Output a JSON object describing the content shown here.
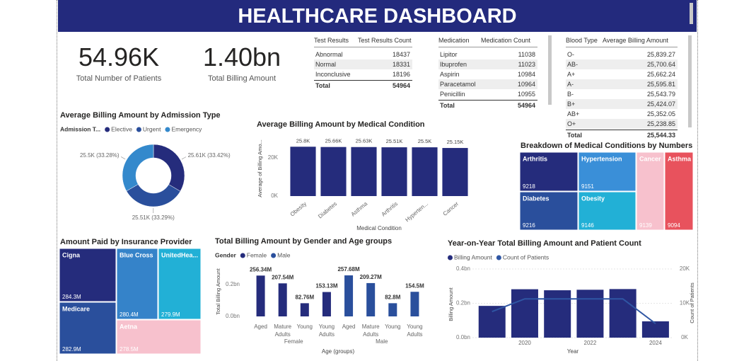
{
  "header": {
    "title": "HEALTHCARE DASHBOARD"
  },
  "kpis": [
    {
      "value": "54.96K",
      "label": "Total Number of Patients"
    },
    {
      "value": "1.40bn",
      "label": "Total Billing Amount"
    }
  ],
  "tables": [
    {
      "columns": [
        "Test Results",
        "Test Results Count"
      ],
      "rows": [
        [
          "Abnormal",
          "18437"
        ],
        [
          "Normal",
          "18331"
        ],
        [
          "Inconclusive",
          "18196"
        ]
      ],
      "total": [
        "Total",
        "54964"
      ]
    },
    {
      "columns": [
        "Medication",
        "Medication Count"
      ],
      "rows": [
        [
          "Lipitor",
          "11038"
        ],
        [
          "Ibuprofen",
          "11023"
        ],
        [
          "Aspirin",
          "10984"
        ],
        [
          "Paracetamol",
          "10964"
        ],
        [
          "Penicillin",
          "10955"
        ]
      ],
      "total": [
        "Total",
        "54964"
      ]
    },
    {
      "columns": [
        "Blood Type",
        "Average Billing Amount"
      ],
      "rows": [
        [
          "O-",
          "25,839.27"
        ],
        [
          "AB-",
          "25,700.64"
        ],
        [
          "A+",
          "25,662.24"
        ],
        [
          "A-",
          "25,595.81"
        ],
        [
          "B-",
          "25,543.79"
        ],
        [
          "B+",
          "25,424.07"
        ],
        [
          "AB+",
          "25,352.05"
        ],
        [
          "O+",
          "25,238.85"
        ]
      ],
      "total": [
        "Total",
        "25,544.33"
      ]
    }
  ],
  "chart_data": [
    {
      "type": "pie",
      "title": "Average Billing Amount by Admission Type",
      "legend_title": "Admission T...",
      "categories": [
        "Elective",
        "Urgent",
        "Emergency"
      ],
      "values": [
        25610,
        25510,
        25500
      ],
      "value_labels": [
        "25.61K (33.42%)",
        "25.51K (33.29%)",
        "25.5K (33.28%)"
      ],
      "colors": [
        "#252c7c",
        "#2a4f9c",
        "#3489cc"
      ]
    },
    {
      "type": "bar",
      "title": "Average Billing Amount by Medical Condition",
      "categories": [
        "Obesity",
        "Diabetes",
        "Asthma",
        "Arthritis",
        "Hyperten...",
        "Cancer"
      ],
      "values": [
        25800,
        25660,
        25630,
        25510,
        25500,
        25150
      ],
      "value_labels": [
        "25.8K",
        "25.66K",
        "25.63K",
        "25.51K",
        "25.5K",
        "25.15K"
      ],
      "color": "#252c7c",
      "ylim": [
        0,
        28500
      ],
      "yticks": [
        {
          "value": 0,
          "label": "0K"
        },
        {
          "value": 20000,
          "label": "20K"
        }
      ],
      "xlabel": "Medical Condition",
      "ylabel": "Average of Billing Amo...",
      "grid": false
    },
    {
      "type": "treemap",
      "title": "Breakdown of Medical Conditions by Numbers",
      "categories": [
        "Arthritis",
        "Diabetes",
        "Hypertension",
        "Obesity",
        "Cancer",
        "Asthma"
      ],
      "values": [
        9218,
        9216,
        9151,
        9146,
        9139,
        9094
      ],
      "colors": [
        "#252c7c",
        "#2a4f9c",
        "#3a8fd8",
        "#22b0d6",
        "#f7c1cd",
        "#e8525d"
      ]
    },
    {
      "type": "treemap",
      "title": "Amount Paid by Insurance Provider",
      "categories": [
        "Cigna",
        "Medicare",
        "Blue Cross",
        "UnitedHea...",
        "Aetna"
      ],
      "values": [
        284300000,
        282900000,
        280400000,
        279900000,
        278500000
      ],
      "value_labels": [
        "284.3M",
        "282.9M",
        "280.4M",
        "279.9M",
        "278.5M"
      ],
      "colors": [
        "#252c7c",
        "#2a4f9c",
        "#3583c9",
        "#22b0d6",
        "#f7c1cd"
      ]
    },
    {
      "type": "bar",
      "title": "Total Billing Amount by Gender and Age groups",
      "legend_title": "Gender",
      "categories": [
        "Aged",
        "Mature Adults",
        "Young",
        "Young Adults"
      ],
      "series": [
        {
          "name": "Female",
          "color": "#252c7c",
          "values": [
            256340000,
            207540000,
            82760000,
            153130000
          ],
          "value_labels": [
            "256.34M",
            "207.54M",
            "82.76M",
            "153.13M"
          ]
        },
        {
          "name": "Male",
          "color": "#2a4f9c",
          "values": [
            257680000,
            209270000,
            82800000,
            154500000
          ],
          "value_labels": [
            "257.68M",
            "209.27M",
            "82.8M",
            "154.5M"
          ]
        }
      ],
      "ylim": [
        0,
        320000000
      ],
      "yticks": [
        {
          "value": 0,
          "label": "0.0bn"
        },
        {
          "value": 200000000,
          "label": "0.2bn"
        }
      ],
      "xlabel": "Age (groups)",
      "ylabel": "Total Billing Amount",
      "grid": false
    },
    {
      "type": "combo",
      "title": "Year-on-Year Total Billing Amount and Patient Count",
      "x": [
        2019,
        2020,
        2021,
        2022,
        2023,
        2024
      ],
      "xlim": [
        2018.4,
        2024.5
      ],
      "xticks": [
        2020,
        2022,
        2024
      ],
      "ylim": [
        0,
        400000000
      ],
      "yticks": [
        {
          "value": 0,
          "label": "0.0bn"
        },
        {
          "value": 200000000,
          "label": "0.2bn"
        },
        {
          "value": 400000000,
          "label": "0.4bn"
        }
      ],
      "y2lim": [
        0,
        20000
      ],
      "y2ticks": [
        {
          "value": 0,
          "label": "0K"
        },
        {
          "value": 10000,
          "label": "10K"
        },
        {
          "value": 20000,
          "label": "20K"
        }
      ],
      "xlabel": "Year",
      "ylabel": "Billing Amount",
      "y2label": "Count of Patients",
      "grid": true,
      "series": [
        {
          "name": "Billing Amount",
          "color": "#252c7c",
          "values": [
            185000000,
            282000000,
            276000000,
            279000000,
            283000000,
            95000000
          ]
        },
        {
          "name": "Count of Patients",
          "color": "#2f56a3",
          "axis": "y2",
          "values": [
            7600,
            11300,
            11300,
            11300,
            11300,
            4100
          ]
        }
      ]
    }
  ]
}
